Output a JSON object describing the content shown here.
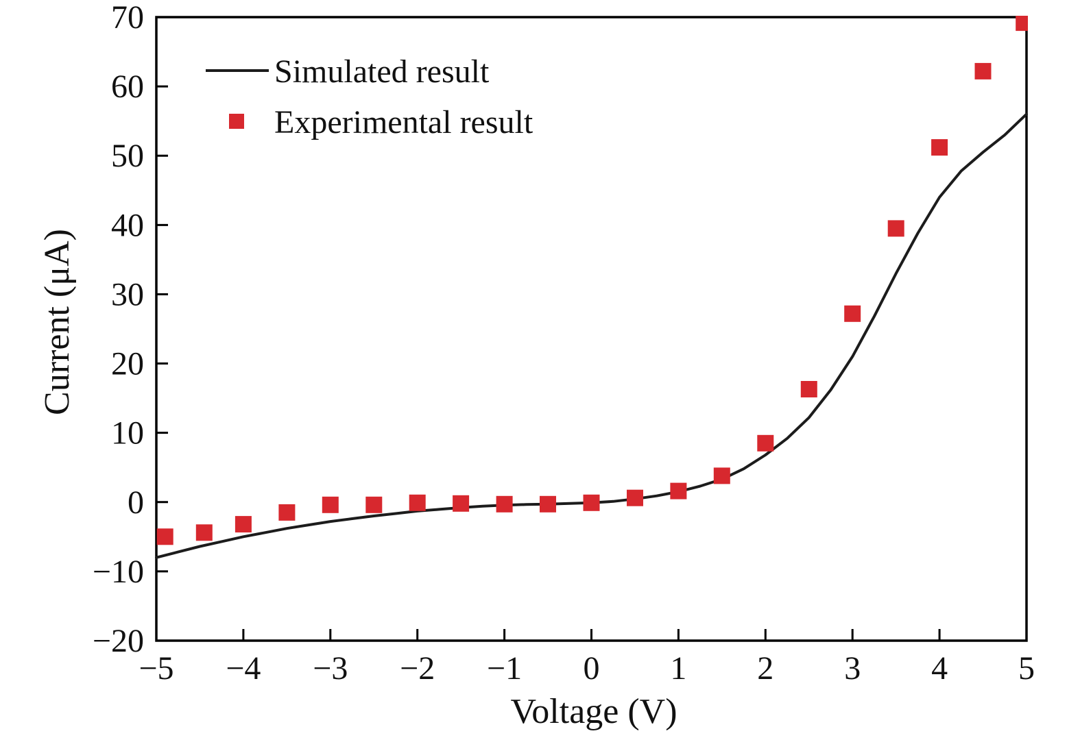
{
  "chart_data": {
    "type": "line+scatter",
    "title": "",
    "xlabel": "Voltage (V)",
    "ylabel": "Current (μA)",
    "xlim": [
      -5,
      5
    ],
    "ylim": [
      -20,
      70
    ],
    "grid": false,
    "legend_position": "upper-left-inside",
    "background": "#ffffff",
    "frame_color": "#000000",
    "xticks": {
      "values": [
        -5,
        -4,
        -3,
        -2,
        -1,
        0,
        1,
        2,
        3,
        4,
        5
      ],
      "labels": [
        "−5",
        "−4",
        "−3",
        "−2",
        "−1",
        "0",
        "1",
        "2",
        "3",
        "4",
        "5"
      ]
    },
    "yticks": {
      "values": [
        -20,
        -10,
        0,
        10,
        20,
        30,
        40,
        50,
        60,
        70
      ],
      "labels": [
        "−20",
        "−10",
        "0",
        "10",
        "20",
        "30",
        "40",
        "50",
        "60",
        "70"
      ]
    },
    "series": [
      {
        "name": "Simulated result",
        "type": "line",
        "color": "#1c1c1c",
        "x": [
          -5,
          -4.75,
          -4.5,
          -4.25,
          -4,
          -3.75,
          -3.5,
          -3.25,
          -3,
          -2.75,
          -2.5,
          -2.25,
          -2,
          -1.75,
          -1.5,
          -1.25,
          -1,
          -0.75,
          -0.5,
          -0.25,
          0,
          0.25,
          0.5,
          0.75,
          1,
          1.25,
          1.5,
          1.75,
          2,
          2.25,
          2.5,
          2.75,
          3,
          3.25,
          3.5,
          3.75,
          4,
          4.25,
          4.5,
          4.75,
          5
        ],
        "y": [
          -8.0,
          -7.2,
          -6.4,
          -5.7,
          -5.0,
          -4.4,
          -3.8,
          -3.3,
          -2.8,
          -2.4,
          -2.0,
          -1.65,
          -1.3,
          -1.05,
          -0.8,
          -0.6,
          -0.45,
          -0.35,
          -0.3,
          -0.2,
          -0.1,
          0.1,
          0.45,
          0.9,
          1.5,
          2.3,
          3.3,
          4.8,
          6.8,
          9.2,
          12.2,
          16.2,
          21.0,
          26.8,
          33.0,
          38.8,
          44.0,
          47.8,
          50.5,
          53.0,
          56.0
        ]
      },
      {
        "name": "Experimental result",
        "type": "scatter",
        "marker": "square",
        "color": "#d7282e",
        "x": [
          -4.9,
          -4.45,
          -4.0,
          -3.5,
          -3.0,
          -2.5,
          -2.0,
          -1.5,
          -1.0,
          -0.5,
          0,
          0.5,
          1.0,
          1.5,
          2.0,
          2.5,
          3.0,
          3.5,
          4.0,
          4.5,
          4.97
        ],
        "y": [
          -5.0,
          -4.4,
          -3.2,
          -1.5,
          -0.4,
          -0.4,
          -0.1,
          -0.2,
          -0.3,
          -0.3,
          -0.1,
          0.6,
          1.6,
          3.8,
          8.5,
          16.3,
          27.2,
          39.5,
          51.2,
          62.2,
          69.2
        ]
      }
    ]
  }
}
